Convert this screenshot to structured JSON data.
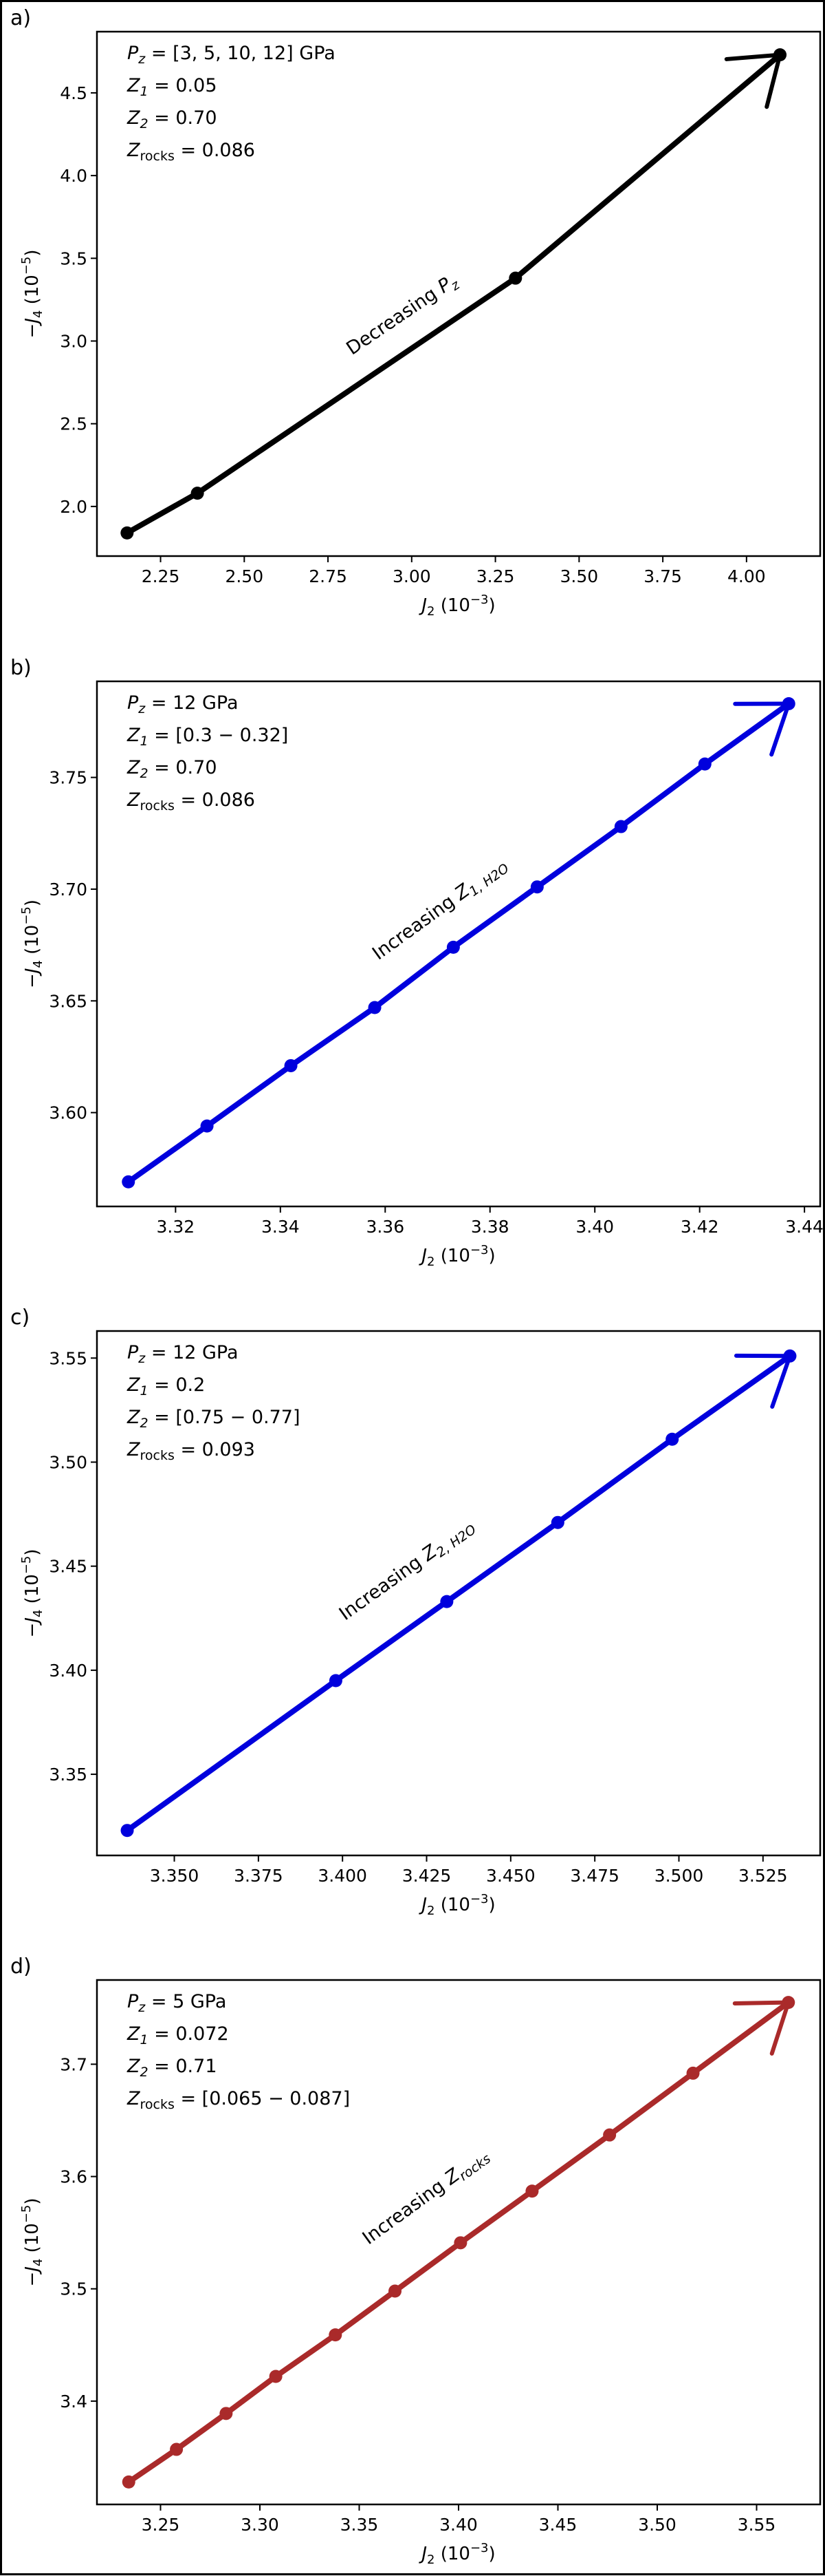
{
  "chart_data": [
    {
      "type": "line",
      "panel_label": "a)",
      "color": "#000000",
      "x": [
        2.15,
        2.36,
        3.31,
        4.1
      ],
      "y": [
        1.84,
        2.08,
        3.38,
        4.73
      ],
      "xlim": [
        2.06,
        4.22
      ],
      "ylim": [
        1.7,
        4.87
      ],
      "xticks": [
        "2.25",
        "2.50",
        "2.75",
        "3.00",
        "3.25",
        "3.50",
        "3.75",
        "4.00"
      ],
      "yticks": [
        "2.0",
        "2.5",
        "3.0",
        "3.5",
        "4.0",
        "4.5"
      ],
      "xlabel": {
        "main": "J",
        "sub": "2",
        "tail": " (10",
        "sup": "−3",
        "close": ")"
      },
      "ylabel": {
        "pre": "−J",
        "sub": "4",
        "tail": " (10",
        "sup": "−5",
        "close": ")"
      },
      "annotation": {
        "main": "Decreasing P",
        "sub": "z",
        "x": 2.98,
        "y": 3.13,
        "angle_data": [
          3.31,
          3.38,
          2.36,
          2.08
        ]
      },
      "info": [
        {
          "main": "P",
          "sub": "z",
          "value": " = [3, 5, 10, 12] GPa"
        },
        {
          "main": "Z",
          "sub": "1",
          "value": " = 0.05"
        },
        {
          "main": "Z",
          "sub": "2",
          "value": " = 0.70"
        },
        {
          "main": "Z",
          "sub": "rocks",
          "value": " = 0.086"
        }
      ]
    },
    {
      "type": "line",
      "panel_label": "b)",
      "color": "#0000dd",
      "x": [
        3.311,
        3.326,
        3.342,
        3.358,
        3.373,
        3.389,
        3.405,
        3.421,
        3.437
      ],
      "y": [
        3.569,
        3.594,
        3.621,
        3.647,
        3.674,
        3.701,
        3.728,
        3.756,
        3.783
      ],
      "xlim": [
        3.305,
        3.443
      ],
      "ylim": [
        3.558,
        3.793
      ],
      "xticks": [
        "3.32",
        "3.34",
        "3.36",
        "3.38",
        "3.40",
        "3.42",
        "3.44"
      ],
      "yticks": [
        "3.60",
        "3.65",
        "3.70",
        "3.75"
      ],
      "xlabel": {
        "main": "J",
        "sub": "2",
        "tail": " (10",
        "sup": "−3",
        "close": ")"
      },
      "ylabel": {
        "pre": "−J",
        "sub": "4",
        "tail": " (10",
        "sup": "−5",
        "close": ")"
      },
      "annotation": {
        "main": "Increasing Z",
        "sub": "1, H2O",
        "x": 3.371,
        "y": 3.689,
        "angle_data": [
          3.311,
          3.569,
          3.437,
          3.783
        ]
      },
      "info": [
        {
          "main": "P",
          "sub": "z",
          "value": " = 12 GPa"
        },
        {
          "main": "Z",
          "sub": "1",
          "value": " = [0.3 − 0.32]"
        },
        {
          "main": "Z",
          "sub": "2",
          "value": " = 0.70"
        },
        {
          "main": "Z",
          "sub": "rocks",
          "value": " = 0.086"
        }
      ]
    },
    {
      "type": "line",
      "panel_label": "c)",
      "color": "#0000dd",
      "x": [
        3.336,
        3.398,
        3.431,
        3.464,
        3.498,
        3.533
      ],
      "y": [
        3.323,
        3.395,
        3.433,
        3.471,
        3.511,
        3.551
      ],
      "xlim": [
        3.327,
        3.542
      ],
      "ylim": [
        3.311,
        3.563
      ],
      "xticks": [
        "3.350",
        "3.375",
        "3.400",
        "3.425",
        "3.450",
        "3.475",
        "3.500",
        "3.525"
      ],
      "yticks": [
        "3.35",
        "3.40",
        "3.45",
        "3.50",
        "3.55"
      ],
      "xlabel": {
        "main": "J",
        "sub": "2",
        "tail": " (10",
        "sup": "−3",
        "close": ")"
      },
      "ylabel": {
        "pre": "−J",
        "sub": "4",
        "tail": " (10",
        "sup": "−5",
        "close": ")"
      },
      "annotation": {
        "main": "Increasing Z",
        "sub": "2, H2O",
        "x": 3.42,
        "y": 3.446,
        "angle_data": [
          3.336,
          3.323,
          3.533,
          3.551
        ]
      },
      "info": [
        {
          "main": "P",
          "sub": "z",
          "value": " = 12 GPa"
        },
        {
          "main": "Z",
          "sub": "1",
          "value": " = 0.2"
        },
        {
          "main": "Z",
          "sub": "2",
          "value": " = [0.75 − 0.77]"
        },
        {
          "main": "Z",
          "sub": "rocks",
          "value": " = 0.093"
        }
      ]
    },
    {
      "type": "line",
      "panel_label": "d)",
      "color": "#aa2a2a",
      "x": [
        3.234,
        3.258,
        3.283,
        3.308,
        3.338,
        3.368,
        3.401,
        3.437,
        3.476,
        3.518,
        3.566
      ],
      "y": [
        3.328,
        3.357,
        3.389,
        3.422,
        3.459,
        3.498,
        3.541,
        3.587,
        3.637,
        3.692,
        3.755
      ],
      "xlim": [
        3.218,
        3.582
      ],
      "ylim": [
        3.308,
        3.775
      ],
      "xticks": [
        "3.25",
        "3.30",
        "3.35",
        "3.40",
        "3.45",
        "3.50",
        "3.55"
      ],
      "yticks": [
        "3.4",
        "3.5",
        "3.6",
        "3.7"
      ],
      "xlabel": {
        "main": "J",
        "sub": "2",
        "tail": " (10",
        "sup": "−3",
        "close": ")"
      },
      "ylabel": {
        "pre": "−J",
        "sub": "4",
        "tail": " (10",
        "sup": "−5",
        "close": ")"
      },
      "annotation": {
        "main": "Increasing Z",
        "sub": "rocks",
        "x": 3.385,
        "y": 3.578,
        "angle_data": [
          3.234,
          3.328,
          3.566,
          3.755
        ]
      },
      "info": [
        {
          "main": "P",
          "sub": "z",
          "value": " = 5 GPa"
        },
        {
          "main": "Z",
          "sub": "1",
          "value": " = 0.072"
        },
        {
          "main": "Z",
          "sub": "2",
          "value": " = 0.71"
        },
        {
          "main": "Z",
          "sub": "rocks",
          "value": " = [0.065 − 0.087]"
        }
      ]
    }
  ]
}
